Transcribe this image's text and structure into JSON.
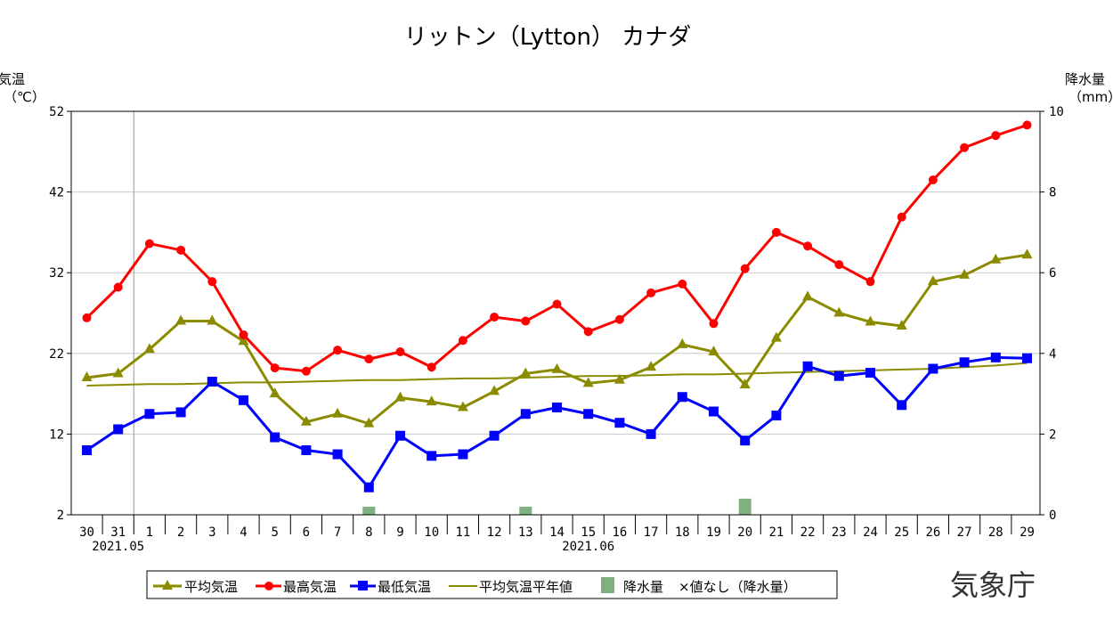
{
  "chart_data": {
    "type": "line",
    "title": "リットン（Lytton） カナダ",
    "y_left_label_line1": "気温",
    "y_left_label_line2": "（℃）",
    "y_right_label_line1": "降水量",
    "y_right_label_line2": "（mm）",
    "ylim_left": [
      2,
      52
    ],
    "ylim_right": [
      0,
      10
    ],
    "yticks_left": [
      2,
      12,
      22,
      32,
      42,
      52
    ],
    "yticks_right": [
      0,
      2,
      4,
      6,
      8,
      10
    ],
    "categories": [
      "30",
      "31",
      "1",
      "2",
      "3",
      "4",
      "5",
      "6",
      "7",
      "8",
      "9",
      "10",
      "11",
      "12",
      "13",
      "14",
      "15",
      "16",
      "17",
      "18",
      "19",
      "20",
      "21",
      "22",
      "23",
      "24",
      "25",
      "26",
      "27",
      "28",
      "29"
    ],
    "month_labels": [
      {
        "index": 1,
        "label": "2021.05"
      },
      {
        "index": 16,
        "label": "2021.06"
      }
    ],
    "series": [
      {
        "name": "平均気温",
        "marker": "triangle",
        "color": "#8b8b00",
        "values": [
          19.0,
          19.5,
          22.5,
          26.0,
          26.0,
          23.5,
          17.0,
          13.5,
          14.5,
          13.3,
          16.5,
          16.0,
          15.3,
          17.3,
          19.5,
          20.0,
          18.3,
          18.7,
          20.3,
          23.1,
          22.2,
          18.1,
          23.9,
          29.0,
          27.0,
          25.9,
          25.4,
          30.9,
          31.7,
          33.6,
          34.2
        ]
      },
      {
        "name": "最高気温",
        "marker": "circle",
        "color": "#ff0000",
        "values": [
          26.4,
          30.2,
          35.6,
          34.8,
          30.9,
          24.3,
          20.2,
          19.8,
          22.4,
          21.3,
          22.2,
          20.3,
          23.6,
          26.5,
          26.0,
          28.1,
          24.7,
          26.2,
          29.5,
          30.6,
          25.7,
          32.5,
          37.0,
          35.3,
          33.0,
          30.9,
          38.9,
          43.5,
          47.5,
          49.0,
          50.3
        ]
      },
      {
        "name": "最低気温",
        "marker": "square",
        "color": "#0000ff",
        "values": [
          10.0,
          12.6,
          14.5,
          14.7,
          18.5,
          16.2,
          11.6,
          10.0,
          9.5,
          5.4,
          11.8,
          9.3,
          9.5,
          11.8,
          14.5,
          15.3,
          14.5,
          13.4,
          12.0,
          16.6,
          14.8,
          11.2,
          14.3,
          20.4,
          19.2,
          19.6,
          15.6,
          20.1,
          20.9,
          21.5,
          21.4
        ]
      },
      {
        "name": "平均気温平年値",
        "marker": "none",
        "color": "#8b8b00",
        "values": [
          18.0,
          18.1,
          18.2,
          18.2,
          18.3,
          18.4,
          18.4,
          18.5,
          18.6,
          18.7,
          18.7,
          18.8,
          18.9,
          18.9,
          19.0,
          19.1,
          19.2,
          19.2,
          19.3,
          19.4,
          19.4,
          19.5,
          19.6,
          19.7,
          19.8,
          19.9,
          20.0,
          20.1,
          20.3,
          20.5,
          20.8
        ]
      }
    ],
    "precipitation": {
      "name": "降水量",
      "color": "#7fb080",
      "values": [
        0,
        0,
        0,
        0,
        0,
        0,
        0,
        0,
        0,
        0.2,
        0,
        0,
        0,
        0,
        0.2,
        0,
        0,
        0,
        0,
        0,
        0,
        0.4,
        0,
        0,
        0,
        0,
        0,
        0,
        0,
        0,
        0
      ]
    },
    "legend": [
      {
        "label": "平均気温"
      },
      {
        "label": "最高気温"
      },
      {
        "label": "最低気温"
      },
      {
        "label": "平均気温平年値"
      },
      {
        "label": "降水量"
      },
      {
        "label": "×値なし（降水量）"
      }
    ]
  },
  "credit": "気象庁"
}
